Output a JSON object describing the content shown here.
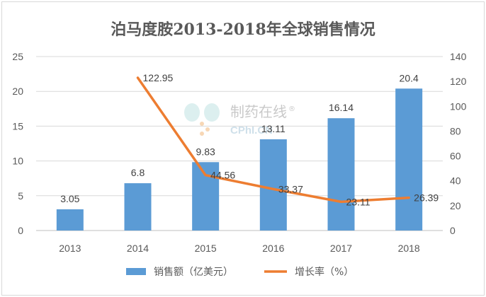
{
  "chart_data": {
    "type": "bar+line",
    "title": "泊马度胺2013-2018年全球销售情况",
    "categories": [
      "2013",
      "2014",
      "2015",
      "2016",
      "2017",
      "2018"
    ],
    "series": [
      {
        "name": "销售额（亿美元）",
        "type": "bar",
        "axis": "left",
        "color": "#5b9bd5",
        "values": [
          3.05,
          6.8,
          9.83,
          13.11,
          16.14,
          20.4
        ],
        "labels": [
          "3.05",
          "6.8",
          "9.83",
          "13.11",
          "16.14",
          "20.4"
        ]
      },
      {
        "name": "增长率（%）",
        "type": "line",
        "axis": "right",
        "color": "#ed7d31",
        "values": [
          null,
          122.95,
          44.56,
          33.37,
          23.11,
          26.39
        ],
        "labels": [
          "",
          "122.95",
          "44.56",
          "33.37",
          "23.11",
          "26.39"
        ]
      }
    ],
    "y_left": {
      "min": 0,
      "max": 25,
      "ticks": [
        "0",
        "5",
        "10",
        "15",
        "20",
        "25"
      ]
    },
    "y_right": {
      "min": 0,
      "max": 140,
      "ticks": [
        "0",
        "20",
        "40",
        "60",
        "80",
        "100",
        "120",
        "140"
      ]
    },
    "grid": true,
    "legend_position": "bottom"
  },
  "watermark": {
    "text_cn": "制药在线",
    "text_en": "CPhI.CN",
    "registered": "®"
  }
}
